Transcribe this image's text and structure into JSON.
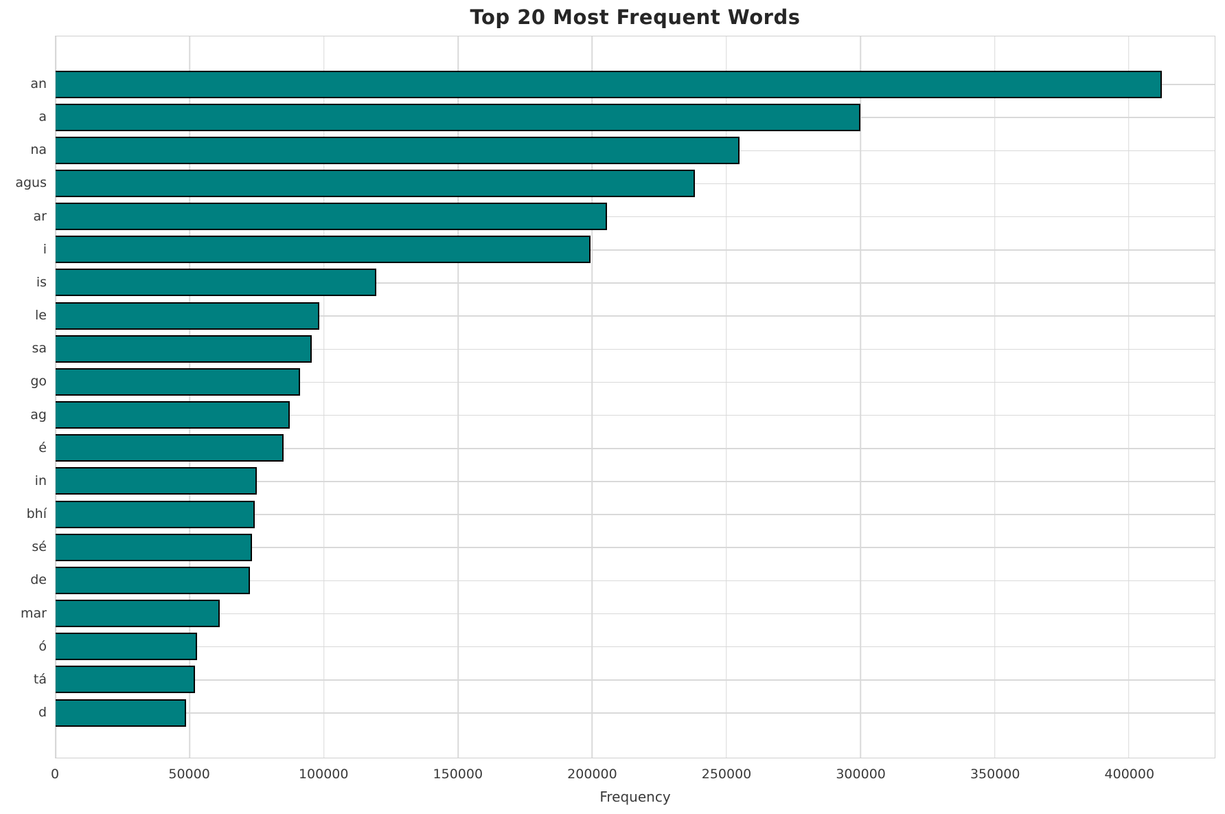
{
  "chart_data": {
    "type": "bar",
    "orientation": "horizontal",
    "title": "Top 20 Most Frequent Words",
    "xlabel": "Frequency",
    "ylabel": "",
    "categories": [
      "an",
      "a",
      "na",
      "agus",
      "ar",
      "i",
      "is",
      "le",
      "sa",
      "go",
      "ag",
      "é",
      "in",
      "bhí",
      "sé",
      "de",
      "mar",
      "ó",
      "tá",
      "d"
    ],
    "values": [
      411700,
      299400,
      254400,
      237800,
      205000,
      198900,
      119000,
      97800,
      95000,
      90500,
      86700,
      84500,
      74400,
      73700,
      72700,
      71900,
      60600,
      52200,
      51400,
      48100
    ],
    "xticks": [
      0,
      50000,
      100000,
      150000,
      200000,
      250000,
      300000,
      350000,
      400000
    ],
    "xlim": [
      0,
      432000
    ],
    "grid": true,
    "legend": "none",
    "bar_color": "#008080",
    "bar_edge_color": "#000000",
    "gridline_color": "#d9d9d9"
  }
}
